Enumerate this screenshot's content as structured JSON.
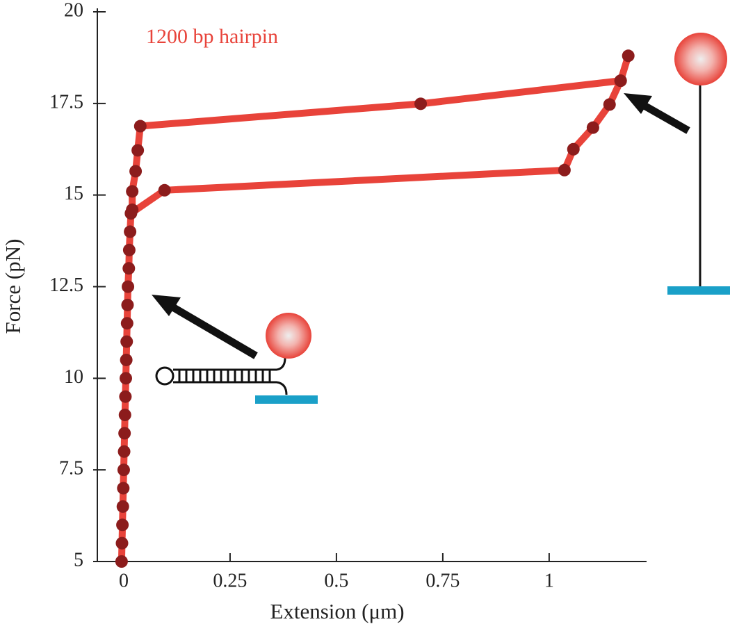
{
  "chart_data": {
    "type": "line",
    "annotation": "1200 bp hairpin",
    "xlabel": "Extension (μm)",
    "ylabel": "Force (pN)",
    "x": [
      -0.005,
      -0.004,
      -0.003,
      -0.002,
      -0.001,
      0,
      0.001,
      0.002,
      0.003,
      0.004,
      0.005,
      0.006,
      0.007,
      0.008,
      0.009,
      0.01,
      0.012,
      0.013,
      0.015,
      0.017,
      0.096,
      1.036,
      1.057,
      1.103,
      1.142,
      1.168,
      1.186,
      1.168,
      0.698,
      0.039,
      0.033,
      0.028,
      0.02,
      0.02
    ],
    "series": [
      {
        "color": "#e8433a",
        "marker_color": "#8c1c1c",
        "values": [
          5,
          5.5,
          6,
          6.5,
          7,
          7.5,
          8,
          8.5,
          9,
          9.5,
          10,
          10.5,
          11,
          11.5,
          12,
          12.5,
          13,
          13.5,
          14,
          14.5,
          15.13,
          15.68,
          16.25,
          16.84,
          17.47,
          18.12,
          18.8,
          18.12,
          17.49,
          16.88,
          16.22,
          15.65,
          15.1,
          14.6
        ]
      }
    ],
    "xlim": [
      -0.062,
      1.229
    ],
    "ylim": [
      5,
      20
    ],
    "xticks": [
      0,
      0.25,
      0.5,
      0.75,
      1
    ],
    "yticks": [
      5,
      7.5,
      10,
      12.5,
      15,
      17.5,
      20
    ]
  }
}
